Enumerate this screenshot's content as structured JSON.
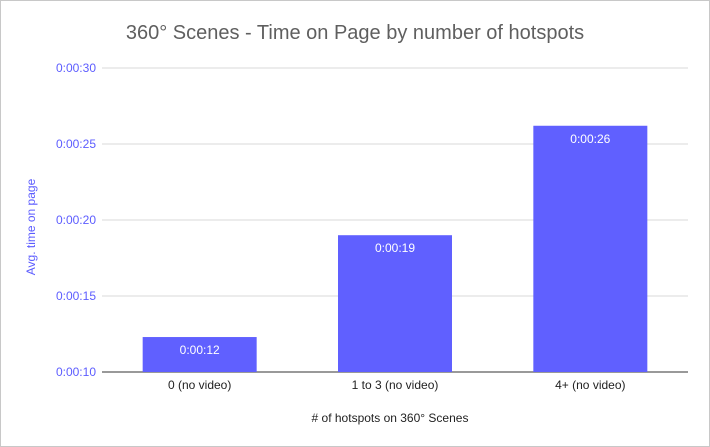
{
  "chart_data": {
    "type": "bar",
    "title": "360° Scenes - Time on Page by number of hotspots",
    "xlabel": "# of hotspots on 360° Scenes",
    "ylabel": "Avg. time on page",
    "categories": [
      "0 (no video)",
      "1 to 3 (no video)",
      "4+ (no video)"
    ],
    "values": [
      12.3,
      19,
      26.2
    ],
    "data_labels": [
      "0:00:12",
      "0:00:19",
      "0:00:26"
    ],
    "ylim": [
      10,
      30
    ],
    "yticks": [
      10,
      15,
      20,
      25,
      30
    ],
    "ytick_labels": [
      "0:00:10",
      "0:00:15",
      "0:00:20",
      "0:00:25",
      "0:00:30"
    ],
    "grid": true,
    "legend": "none",
    "bar_color": "#6060ff",
    "grid_color": "#d9d9d9"
  }
}
